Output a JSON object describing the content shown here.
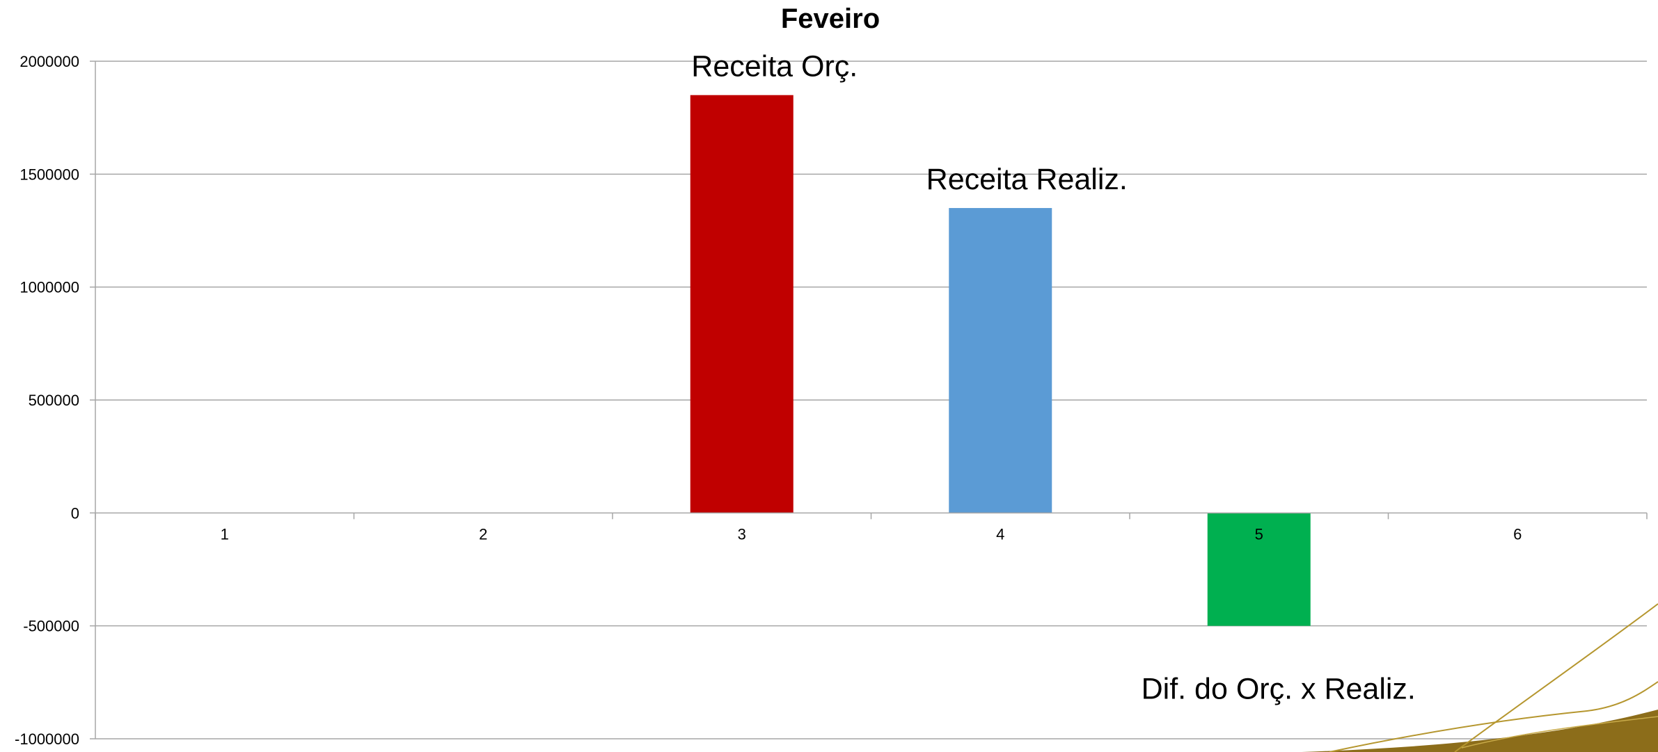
{
  "chart_data": {
    "type": "bar",
    "title": "Feveiro",
    "xlabel": "",
    "ylabel": "",
    "categories": [
      "1",
      "2",
      "3",
      "4",
      "5",
      "6"
    ],
    "values": [
      null,
      null,
      1850000,
      1350000,
      -500000,
      null
    ],
    "bar_colors": [
      null,
      null,
      "#c00000",
      "#5b9bd5",
      "#00b050",
      null
    ],
    "ylim": [
      -1000000,
      2000000
    ],
    "yticks": [
      "2000000",
      "1500000",
      "1000000",
      "500000",
      "0",
      "-500000",
      "-1000000"
    ],
    "grid": true,
    "legend": "none",
    "annotations": [
      {
        "text": "Receita Orç.",
        "category": "3"
      },
      {
        "text": "Receita Realiz.",
        "category": "4"
      },
      {
        "text": "Dif. do Orç. x Realiz.",
        "category": "5"
      }
    ]
  },
  "decoration": {
    "corner_swoosh_colors": [
      "#b5962e",
      "#8c6d1a",
      "#c9ab4a"
    ]
  }
}
